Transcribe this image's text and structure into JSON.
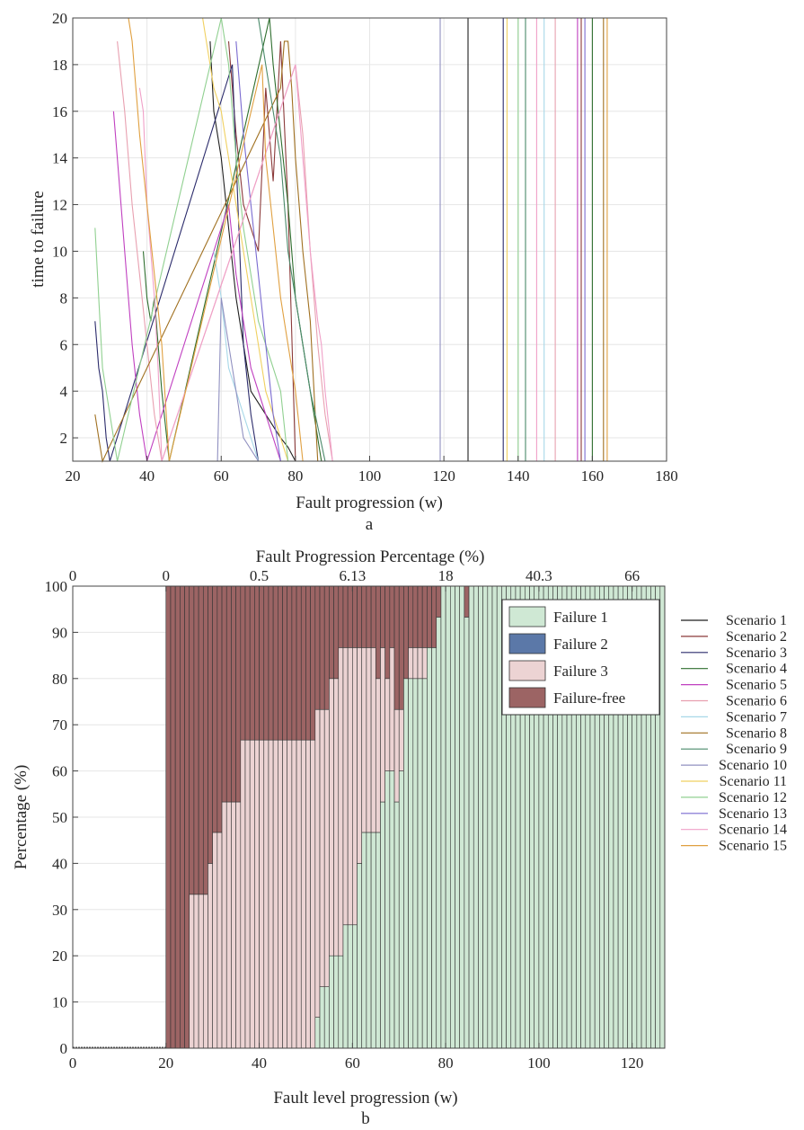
{
  "chart_data": [
    {
      "panel": "a",
      "type": "line",
      "xlabel": "Fault progression (w)",
      "ylabel": "time to failure",
      "xlim": [
        20,
        180
      ],
      "ylim": [
        1,
        20
      ],
      "xticks": [
        "20",
        "40",
        "60",
        "80",
        "100",
        "120",
        "140",
        "160",
        "180"
      ],
      "yticks": [
        "2",
        "4",
        "6",
        "8",
        "10",
        "12",
        "14",
        "16",
        "18",
        "20"
      ],
      "grid": true,
      "series": [
        {
          "name": "Scenario 1",
          "color": "#1f1f1f",
          "x": [
            57,
            58,
            60,
            62,
            64,
            66,
            68,
            72,
            76,
            78,
            80,
            126.5,
            126.5
          ],
          "y": [
            19,
            16,
            14,
            11,
            8,
            6,
            4,
            3,
            2,
            1.6,
            1,
            1,
            20
          ]
        },
        {
          "name": "Scenario 2",
          "color": "#8b3a3a",
          "x": [
            62,
            64,
            66,
            70,
            72,
            74,
            76,
            78,
            80,
            157,
            157
          ],
          "y": [
            19,
            15,
            12,
            10,
            17,
            13,
            19,
            12,
            1,
            1,
            20
          ]
        },
        {
          "name": "Scenario 3",
          "color": "#2b2b6b",
          "x": [
            26,
            27,
            28,
            29,
            30,
            63,
            64,
            65,
            66,
            68,
            70,
            136,
            136
          ],
          "y": [
            7,
            5,
            4,
            2,
            1,
            18,
            14,
            10,
            6,
            3,
            1,
            1,
            20
          ]
        },
        {
          "name": "Scenario 4",
          "color": "#2e6e2e",
          "x": [
            39,
            40,
            41,
            42,
            44,
            46,
            73,
            74,
            76,
            78,
            80,
            82,
            84,
            87,
            160,
            160
          ],
          "y": [
            10,
            8,
            7,
            8,
            4,
            1,
            20,
            18,
            15,
            12,
            8,
            6,
            4,
            1,
            1,
            20
          ]
        },
        {
          "name": "Scenario 5",
          "color": "#c040c0",
          "x": [
            31,
            32,
            34,
            36,
            38,
            40,
            62,
            64,
            66,
            68,
            72,
            76,
            156,
            156
          ],
          "y": [
            16,
            14,
            10,
            6,
            3,
            1,
            12,
            9,
            7,
            5,
            3,
            1,
            1,
            20
          ]
        },
        {
          "name": "Scenario 6",
          "color": "#e8a0b0",
          "x": [
            32,
            34,
            36,
            38,
            40,
            42,
            44,
            80,
            82,
            84,
            86,
            88,
            90,
            150,
            150
          ],
          "y": [
            19,
            16,
            12,
            9,
            6,
            3,
            1,
            18,
            15,
            10,
            6,
            3,
            1,
            1,
            20
          ]
        },
        {
          "name": "Scenario 7",
          "color": "#a8d8e8",
          "x": [
            58,
            60,
            62,
            64,
            66,
            68,
            70,
            147,
            147
          ],
          "y": [
            10,
            8,
            5,
            4,
            3,
            2,
            1,
            1,
            20
          ]
        },
        {
          "name": "Scenario 8",
          "color": "#a07020",
          "x": [
            26,
            27,
            28,
            76,
            77,
            78,
            79,
            80,
            82,
            84,
            86,
            163,
            163
          ],
          "y": [
            3,
            2,
            1,
            17,
            19,
            19,
            17,
            14,
            10,
            7,
            1,
            1,
            20
          ]
        },
        {
          "name": "Scenario 9",
          "color": "#4a8a6a",
          "x": [
            70,
            72,
            74,
            76,
            78,
            80,
            82,
            84,
            88,
            142,
            142
          ],
          "y": [
            20,
            18,
            16,
            14,
            10,
            8,
            6,
            4,
            1,
            1,
            20
          ]
        },
        {
          "name": "Scenario 10",
          "color": "#9090c0",
          "x": [
            59,
            60,
            62,
            64,
            66,
            68,
            70,
            119,
            119
          ],
          "y": [
            1,
            8,
            6,
            4,
            2,
            1.5,
            1,
            1,
            20
          ]
        },
        {
          "name": "Scenario 11",
          "color": "#f0d060",
          "x": [
            55,
            56,
            58,
            60,
            62,
            64,
            66,
            68,
            70,
            72,
            74,
            76,
            78,
            137,
            137
          ],
          "y": [
            20,
            19,
            17,
            16,
            14,
            12,
            10,
            8,
            6,
            4,
            3,
            2,
            1,
            1,
            20
          ]
        },
        {
          "name": "Scenario 12",
          "color": "#90d090",
          "x": [
            26,
            27,
            28,
            30,
            32,
            60,
            62,
            64,
            66,
            68,
            70,
            72,
            74,
            76,
            78,
            140,
            140
          ],
          "y": [
            11,
            8,
            5,
            3,
            1,
            20,
            18,
            14,
            11,
            9,
            7,
            6,
            5,
            4,
            1,
            1,
            20
          ]
        },
        {
          "name": "Scenario 13",
          "color": "#7a6ad0",
          "x": [
            64,
            65,
            66,
            68,
            70,
            72,
            74,
            76,
            158,
            158
          ],
          "y": [
            19,
            17,
            15,
            12,
            9,
            6,
            3,
            1,
            1,
            20
          ]
        },
        {
          "name": "Scenario 14",
          "color": "#f0a0c8",
          "x": [
            38,
            39,
            40,
            41,
            42,
            43,
            44,
            80,
            82,
            84,
            86,
            87,
            88,
            90,
            145,
            145
          ],
          "y": [
            17,
            16,
            12,
            10,
            8,
            5,
            1,
            18,
            14,
            10,
            7,
            6,
            4,
            1,
            1,
            20
          ]
        },
        {
          "name": "Scenario 15",
          "color": "#e0a040",
          "x": [
            35,
            36,
            38,
            40,
            42,
            44,
            46,
            71,
            72,
            74,
            76,
            78,
            80,
            82,
            164,
            164
          ],
          "y": [
            20,
            19,
            15,
            12,
            9,
            6,
            1,
            18,
            14,
            11,
            8,
            6,
            4,
            1,
            1,
            20
          ]
        }
      ]
    },
    {
      "panel": "b",
      "type": "bar",
      "stacked": true,
      "xlabel": "Fault level progression (w)",
      "ylabel": "Percentage (%)",
      "top_xlabel": "Fault Progression Percentage (%)",
      "xlim": [
        0,
        127
      ],
      "ylim": [
        0,
        100
      ],
      "xticks": [
        "0",
        "20",
        "40",
        "60",
        "80",
        "100",
        "120"
      ],
      "yticks": [
        "0",
        "10",
        "20",
        "30",
        "40",
        "50",
        "60",
        "70",
        "80",
        "90",
        "100"
      ],
      "top_ticks": [
        "0",
        "0",
        "0.5",
        "6.13",
        "18",
        "40.3",
        "66"
      ],
      "grid": true,
      "legend_position": "top-right",
      "legend": [
        {
          "name": "Failure 1",
          "color": "#cfe8d4"
        },
        {
          "name": "Failure 2",
          "color": "#5b78a8"
        },
        {
          "name": "Failure 3",
          "color": "#ecd3d3"
        },
        {
          "name": "Failure-free",
          "color": "#9c6464"
        }
      ],
      "scenario_legend": [
        "Scenario 1",
        "Scenario 2",
        "Scenario 3",
        "Scenario 4",
        "Scenario 5",
        "Scenario 6",
        "Scenario 7",
        "Scenario 8",
        "Scenario 9",
        "Scenario 10",
        "Scenario 11",
        "Scenario 12",
        "Scenario 13",
        "Scenario 14",
        "Scenario 15"
      ],
      "bar_start": 20,
      "bar_end": 127,
      "failure1_breakpoints": [
        [
          52,
          0
        ],
        [
          52.5,
          6.7
        ],
        [
          53,
          13.3
        ],
        [
          55,
          20
        ],
        [
          58,
          26.7
        ],
        [
          61,
          40
        ],
        [
          62,
          46.7
        ],
        [
          66,
          53.3
        ],
        [
          67,
          60
        ],
        [
          69,
          53.3
        ],
        [
          70,
          60
        ],
        [
          71,
          80
        ],
        [
          76,
          86.7
        ],
        [
          78,
          93.3
        ],
        [
          79,
          100
        ],
        [
          84,
          93.3
        ],
        [
          85,
          100
        ]
      ],
      "failure3_top_breakpoints": [
        [
          20,
          0
        ],
        [
          21,
          0
        ],
        [
          25,
          33.3
        ],
        [
          29,
          40
        ],
        [
          30,
          46.7
        ],
        [
          32,
          53.3
        ],
        [
          36,
          66.7
        ],
        [
          52,
          73.3
        ],
        [
          55,
          80
        ],
        [
          57,
          86.7
        ],
        [
          65,
          80
        ],
        [
          66,
          86.7
        ],
        [
          67,
          80
        ],
        [
          68,
          86.7
        ],
        [
          69,
          73.3
        ],
        [
          71,
          80
        ],
        [
          72,
          86.7
        ],
        [
          76,
          86.7
        ],
        [
          78,
          93.3
        ],
        [
          79,
          100
        ],
        [
          84,
          93.3
        ],
        [
          85,
          100
        ]
      ]
    }
  ],
  "panel_letters": {
    "a": "a",
    "b": "b"
  }
}
